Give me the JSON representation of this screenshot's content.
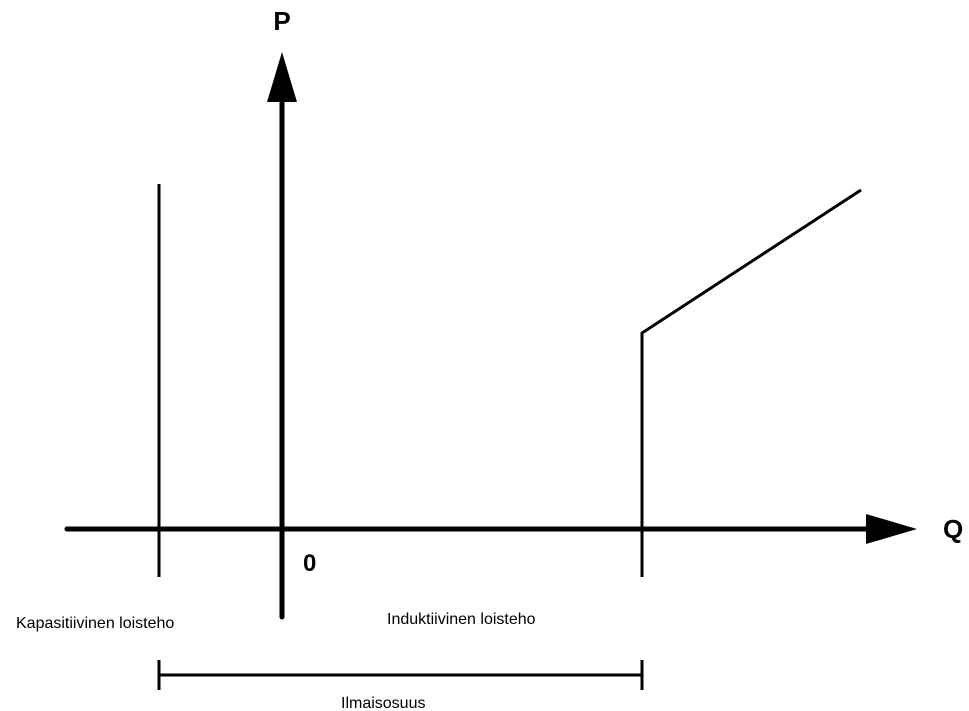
{
  "axes": {
    "vertical_label": "P",
    "horizontal_label": "Q",
    "origin_label": "0"
  },
  "regions": {
    "capacitive_label": "Kapasitiivinen loisteho",
    "inductive_label": "Induktiivinen loisteho",
    "free_share_label": "Ilmaisosuus"
  },
  "colors": {
    "line": "#000000",
    "background": "#ffffff"
  }
}
